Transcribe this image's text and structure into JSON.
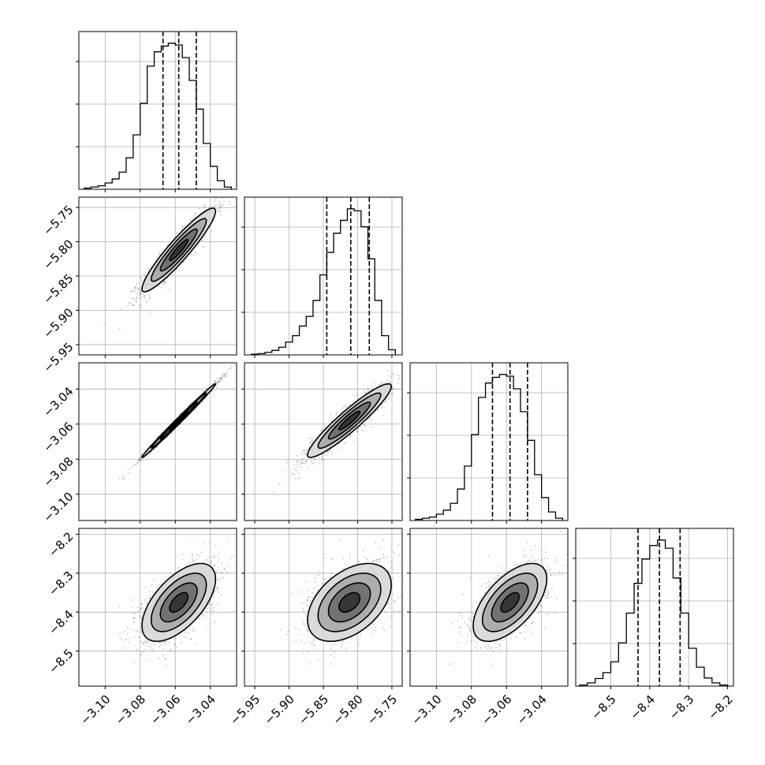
{
  "chart_data": {
    "type": "corner",
    "grid": true,
    "params": [
      {
        "range": [
          -3.115,
          -3.025
        ],
        "ticks": [
          -3.1,
          -3.08,
          -3.06,
          -3.04
        ],
        "tick_labels": [
          "−3.10",
          "−3.08",
          "−3.06",
          "−3.04"
        ],
        "quantiles": [
          -3.067,
          -3.058,
          -3.048
        ],
        "hist": {
          "edges": [
            -3.112,
            -3.108,
            -3.104,
            -3.1,
            -3.096,
            -3.092,
            -3.088,
            -3.084,
            -3.08,
            -3.076,
            -3.072,
            -3.068,
            -3.064,
            -3.06,
            -3.056,
            -3.052,
            -3.048,
            -3.044,
            -3.04,
            -3.036,
            -3.032,
            -3.028
          ],
          "counts": [
            2,
            4,
            6,
            11,
            18,
            30,
            55,
            95,
            150,
            215,
            240,
            250,
            255,
            252,
            230,
            190,
            140,
            80,
            40,
            15,
            4
          ]
        }
      },
      {
        "range": [
          -5.965,
          -5.735
        ],
        "ticks": [
          -5.95,
          -5.9,
          -5.85,
          -5.8,
          -5.75
        ],
        "tick_labels": [
          "−5.95",
          "−5.90",
          "−5.85",
          "−5.80",
          "−5.75"
        ],
        "quantiles": [
          -5.845,
          -5.81,
          -5.783
        ],
        "hist": {
          "edges": [
            -5.955,
            -5.945,
            -5.935,
            -5.925,
            -5.915,
            -5.905,
            -5.895,
            -5.885,
            -5.875,
            -5.865,
            -5.855,
            -5.845,
            -5.835,
            -5.825,
            -5.815,
            -5.805,
            -5.795,
            -5.785,
            -5.775,
            -5.765,
            -5.755,
            -5.745
          ],
          "counts": [
            1,
            2,
            4,
            7,
            12,
            20,
            30,
            45,
            60,
            85,
            125,
            160,
            190,
            210,
            228,
            225,
            200,
            150,
            85,
            30,
            8
          ]
        }
      },
      {
        "range": [
          -3.115,
          -3.025
        ],
        "ticks": [
          -3.1,
          -3.08,
          -3.06,
          -3.04
        ],
        "tick_labels": [
          "−3.10",
          "−3.08",
          "−3.06",
          "−3.04"
        ],
        "quantiles": [
          -3.068,
          -3.058,
          -3.048
        ],
        "hist": {
          "edges": [
            -3.112,
            -3.108,
            -3.104,
            -3.1,
            -3.096,
            -3.092,
            -3.088,
            -3.084,
            -3.08,
            -3.076,
            -3.072,
            -3.068,
            -3.064,
            -3.06,
            -3.056,
            -3.052,
            -3.048,
            -3.044,
            -3.04,
            -3.036,
            -3.032,
            -3.028
          ],
          "counts": [
            2,
            4,
            6,
            11,
            18,
            30,
            55,
            95,
            150,
            215,
            240,
            250,
            255,
            252,
            230,
            190,
            140,
            80,
            40,
            15,
            4
          ]
        }
      },
      {
        "range": [
          -8.59,
          -8.185
        ],
        "ticks": [
          -8.5,
          -8.4,
          -8.3,
          -8.2
        ],
        "tick_labels": [
          "−8.5",
          "−8.4",
          "−8.3",
          "−8.2"
        ],
        "quantiles": [
          -8.43,
          -8.375,
          -8.322
        ],
        "hist": {
          "edges": [
            -8.58,
            -8.56,
            -8.54,
            -8.52,
            -8.5,
            -8.48,
            -8.46,
            -8.44,
            -8.42,
            -8.4,
            -8.38,
            -8.36,
            -8.34,
            -8.32,
            -8.3,
            -8.28,
            -8.26,
            -8.24,
            -8.22,
            -8.2
          ],
          "counts": [
            2,
            6,
            14,
            25,
            45,
            80,
            135,
            190,
            235,
            260,
            270,
            255,
            200,
            135,
            70,
            35,
            15,
            6,
            2
          ]
        }
      }
    ],
    "pairs": [
      {
        "row": 1,
        "col": 0,
        "mean": [
          -3.058,
          -5.812
        ],
        "sd": [
          0.0105,
          0.0305
        ],
        "rho": 0.93
      },
      {
        "row": 2,
        "col": 0,
        "mean": [
          -3.058,
          -3.058
        ],
        "sd": [
          0.0105,
          0.0105
        ],
        "rho": 0.995
      },
      {
        "row": 2,
        "col": 1,
        "mean": [
          -5.812,
          -3.058
        ],
        "sd": [
          0.0305,
          0.0105
        ],
        "rho": 0.93
      },
      {
        "row": 3,
        "col": 0,
        "mean": [
          -3.058,
          -8.375
        ],
        "sd": [
          0.0105,
          0.05
        ],
        "rho": 0.6
      },
      {
        "row": 3,
        "col": 1,
        "mean": [
          -5.812,
          -8.375
        ],
        "sd": [
          0.0305,
          0.05
        ],
        "rho": 0.45
      },
      {
        "row": 3,
        "col": 2,
        "mean": [
          -3.058,
          -8.375
        ],
        "sd": [
          0.0105,
          0.05
        ],
        "rho": 0.6
      }
    ],
    "contour_levels_sigma": [
      0.5,
      1.0,
      1.5,
      2.0
    ]
  }
}
